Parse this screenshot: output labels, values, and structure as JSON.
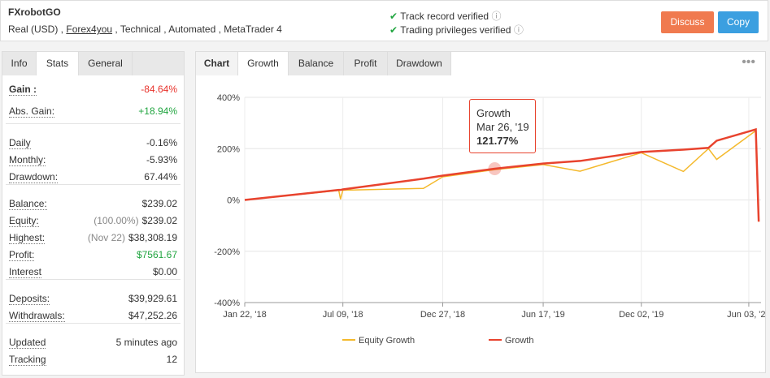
{
  "header": {
    "title": "FXrobotGO",
    "account": "Real (USD) ,",
    "broker": "Forex4you",
    "details": ", Technical , Automated , MetaTrader 4",
    "verified": [
      "Track record verified",
      "Trading privileges verified"
    ],
    "buttons": [
      "Discuss",
      "Copy"
    ]
  },
  "left_tabs": {
    "items": [
      "Info",
      "Stats",
      "General"
    ],
    "active": 1
  },
  "stats": [
    [
      {
        "label": "Gain :",
        "value": "-84.64%",
        "color": "#e8312a"
      },
      {
        "label": "Abs. Gain:",
        "value": "+18.94%",
        "color": "#21a540"
      }
    ],
    [
      {
        "label": "Daily",
        "value": "-0.16%"
      },
      {
        "label": "Monthly:",
        "value": "-5.93%"
      },
      {
        "label": "Drawdown:",
        "value": "67.44%"
      }
    ],
    [
      {
        "label": "Balance:",
        "value": "$239.02"
      },
      {
        "label": "Equity:",
        "note": "(100.00%)",
        "value": "$239.02"
      },
      {
        "label": "Highest:",
        "note": "(Nov 22)",
        "value": "$38,308.19"
      },
      {
        "label": "Profit:",
        "value": "$7561.67",
        "color": "#21a540"
      },
      {
        "label": "Interest",
        "value": "$0.00"
      }
    ],
    [
      {
        "label": "Deposits:",
        "value": "$39,929.61"
      },
      {
        "label": "Withdrawals:",
        "value": "$47,252.26"
      }
    ],
    [
      {
        "label": "Updated",
        "value": "5 minutes ago"
      },
      {
        "label": "Tracking",
        "value": "12"
      }
    ]
  ],
  "chart_tabs": {
    "label": "Chart",
    "items": [
      "Growth",
      "Balance",
      "Profit",
      "Drawdown"
    ],
    "active": 0
  },
  "chart": {
    "type": "line",
    "x": [
      "2018-01-22",
      "2018-07-02",
      "2018-07-05",
      "2018-07-09",
      "2018-11-24",
      "2018-12-27",
      "2019-03-26",
      "2019-06-17",
      "2019-08-19",
      "2019-12-02",
      "2020-02-12",
      "2020-03-26",
      "2020-04-09",
      "2020-06-15",
      "2020-06-20"
    ],
    "series": [
      {
        "name": "Equity Growth",
        "color": "#f4b92c",
        "values": [
          0,
          37,
          3,
          38,
          45,
          90,
          118,
          138,
          112,
          184,
          111,
          200,
          158,
          270,
          -84.64
        ]
      },
      {
        "name": "Growth",
        "color": "#e8432e",
        "values": [
          0,
          39,
          39,
          41,
          83,
          95,
          121.77,
          142,
          152,
          187,
          196,
          203,
          231,
          275,
          -84.64
        ]
      }
    ],
    "xlim": [
      "2018-01-22",
      "2020-06-24"
    ],
    "xticks": [
      {
        "value": "2018-01-22",
        "label": "Jan 22, '18"
      },
      {
        "value": "2018-07-09",
        "label": "Jul 09, '18"
      },
      {
        "value": "2018-12-27",
        "label": "Dec 27, '18"
      },
      {
        "value": "2019-06-17",
        "label": "Jun 17, '19"
      },
      {
        "value": "2019-12-02",
        "label": "Dec 02, '19"
      },
      {
        "value": "2020-06-03",
        "label": "Jun 03, '20"
      }
    ],
    "ylim": [
      -400,
      400
    ],
    "yticks": [
      {
        "value": -400,
        "label": "-400%"
      },
      {
        "value": -200,
        "label": "-200%"
      },
      {
        "value": 0,
        "label": "0%"
      },
      {
        "value": 200,
        "label": "200%"
      },
      {
        "value": 400,
        "label": "400%"
      }
    ],
    "grid": true,
    "tooltip": {
      "title": "Growth",
      "date": "Mar 26, '19",
      "value": "121.77%",
      "point": 6
    }
  }
}
